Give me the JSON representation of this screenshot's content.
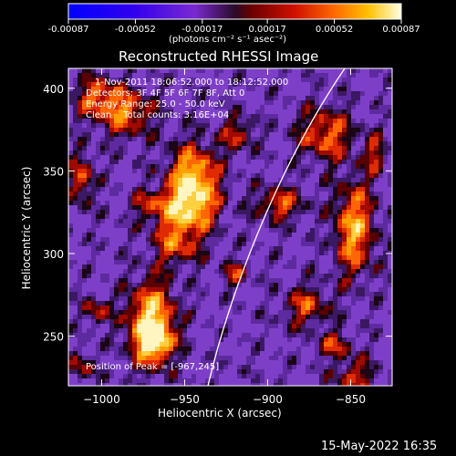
{
  "colorbar": {
    "tick_labels": [
      "-0.00087",
      "-0.00052",
      "-0.00017",
      "0.00017",
      "0.00052",
      "0.00087"
    ],
    "tick_values": [
      -0.00087,
      -0.00052,
      -0.00017,
      0.00017,
      0.00052,
      0.00087
    ],
    "range": [
      -0.00087,
      0.00087
    ],
    "unit_label": "(photons cm⁻² s⁻¹ asec⁻²)"
  },
  "chart_data": {
    "type": "heatmap",
    "title": "Reconstructed RHESSI Image",
    "xlabel": "Heliocentric X (arcsec)",
    "ylabel": "Heliocentric Y (arcsec)",
    "xlim": [
      -1020,
      -825
    ],
    "ylim": [
      220,
      412
    ],
    "x_ticks": [
      -1000,
      -950,
      -900,
      -850
    ],
    "y_ticks": [
      250,
      300,
      350,
      400
    ],
    "x_tick_labels": [
      "−1000",
      "−950",
      "−900",
      "−850"
    ],
    "y_tick_labels": [
      "250",
      "300",
      "350",
      "400"
    ],
    "peak": [
      -967,
      245
    ],
    "info_lines": [
      "1-Nov-2011 18:06:52.000 to 18:12:52.000",
      "Detectors: 3F 4F 5F 6F 7F 8F, Att 0",
      "Energy Range: 25.0 - 50.0 keV",
      "Clean    Total counts: 3.16E+04"
    ],
    "peak_label": "Position of Peak = [-967,245]"
  },
  "footer": {
    "timestamp": "15-May-2022 16:35"
  },
  "colors": {
    "background": "#000000",
    "limb": "#ffffff"
  }
}
